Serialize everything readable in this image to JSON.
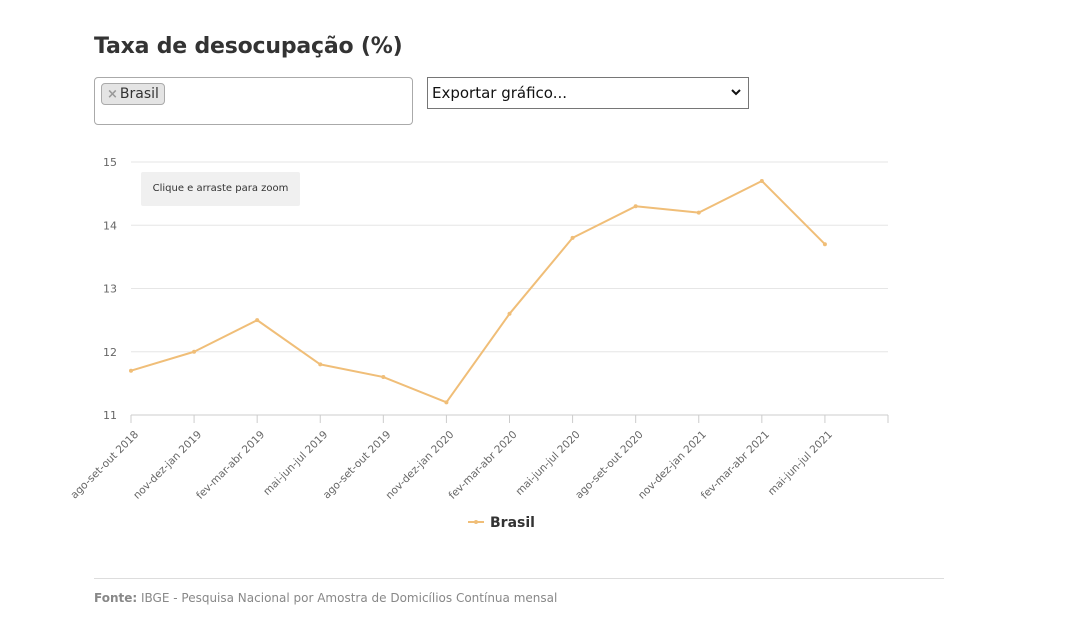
{
  "title": "Taxa de desocupação (%)",
  "filter": {
    "tag_label": "Brasil",
    "remove_glyph": "×"
  },
  "export": {
    "selected": "Exportar gráfico..."
  },
  "zoom_hint": "Clique e arraste para zoom",
  "source": {
    "label": "Fonte:",
    "text": " IBGE - Pesquisa Nacional por Amostra de Domicílios Contínua mensal"
  },
  "colors": {
    "series": "#f0be78",
    "grid": "#e6e6e6",
    "axis_text": "#666666"
  },
  "chart_data": {
    "type": "line",
    "categories": [
      "ago-set-out 2018",
      "nov-dez-jan 2019",
      "fev-mar-abr 2019",
      "mai-jun-jul 2019",
      "ago-set-out 2019",
      "nov-dez-jan 2020",
      "fev-mar-abr 2020",
      "mai-jun-jul 2020",
      "ago-set-out 2020",
      "nov-dez-jan 2021",
      "fev-mar-abr 2021",
      "mai-jun-jul 2021"
    ],
    "series": [
      {
        "name": "Brasil",
        "values": [
          11.7,
          12.0,
          12.5,
          11.8,
          11.6,
          11.2,
          12.6,
          13.8,
          14.3,
          14.2,
          14.7,
          13.7
        ]
      }
    ],
    "ylim": [
      11,
      15
    ],
    "yticks": [
      11,
      12,
      13,
      14,
      15
    ],
    "grid": true,
    "legend": "bottom-center"
  }
}
